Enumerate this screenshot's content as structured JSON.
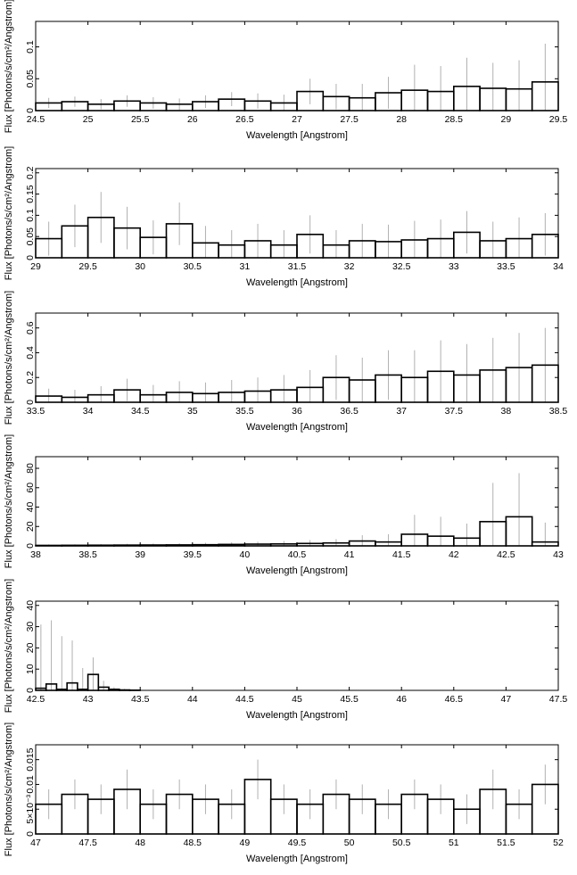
{
  "chart_data": [
    {
      "type": "histogram",
      "xlabel": "Wavelength [Angstrom]",
      "ylabel": "Flux [Photons/s/cm²/Angstrom]",
      "xlim": [
        24.5,
        29.5
      ],
      "ylim": [
        0,
        0.14
      ],
      "xticks": [
        "24.5",
        "25",
        "25.5",
        "26",
        "26.5",
        "27",
        "27.5",
        "28",
        "28.5",
        "29",
        "29.5"
      ],
      "xtick_values": [
        24.5,
        25,
        25.5,
        26,
        26.5,
        27,
        27.5,
        28,
        28.5,
        29,
        29.5
      ],
      "yticks": [
        "0",
        "0.05",
        "0.1"
      ],
      "ytick_values": [
        0,
        0.05,
        0.1
      ],
      "x": [
        24.5,
        24.75,
        25.0,
        25.25,
        25.5,
        25.75,
        26.0,
        26.25,
        26.5,
        26.75,
        27.0,
        27.25,
        27.5,
        27.75,
        28.0,
        28.25,
        28.5,
        28.75,
        29.0,
        29.25
      ],
      "values": [
        0.012,
        0.014,
        0.01,
        0.015,
        0.012,
        0.01,
        0.014,
        0.018,
        0.015,
        0.012,
        0.03,
        0.022,
        0.02,
        0.028,
        0.032,
        0.03,
        0.038,
        0.035,
        0.034,
        0.045
      ],
      "errors": [
        0.008,
        0.008,
        0.008,
        0.009,
        0.009,
        0.009,
        0.01,
        0.011,
        0.012,
        0.013,
        0.02,
        0.02,
        0.022,
        0.025,
        0.04,
        0.04,
        0.045,
        0.04,
        0.045,
        0.06
      ]
    },
    {
      "type": "histogram",
      "xlabel": "Wavelength [Angstrom]",
      "ylabel": "Flux [Photons/s/cm²/Angstrom]",
      "xlim": [
        29,
        34
      ],
      "ylim": [
        0,
        0.21
      ],
      "xticks": [
        "29",
        "29.5",
        "30",
        "30.5",
        "31",
        "31.5",
        "32",
        "32.5",
        "33",
        "33.5",
        "34"
      ],
      "xtick_values": [
        29,
        29.5,
        30,
        30.5,
        31,
        31.5,
        32,
        32.5,
        33,
        33.5,
        34
      ],
      "yticks": [
        "0",
        "0.05",
        "0.1",
        "0.15",
        "0.2"
      ],
      "ytick_values": [
        0,
        0.05,
        0.1,
        0.15,
        0.2
      ],
      "x": [
        29.0,
        29.25,
        29.5,
        29.75,
        30.0,
        30.25,
        30.5,
        30.75,
        31.0,
        31.25,
        31.5,
        31.75,
        32.0,
        32.25,
        32.5,
        32.75,
        33.0,
        33.25,
        33.5,
        33.75
      ],
      "values": [
        0.045,
        0.075,
        0.095,
        0.07,
        0.048,
        0.08,
        0.035,
        0.03,
        0.04,
        0.03,
        0.055,
        0.03,
        0.04,
        0.038,
        0.042,
        0.045,
        0.06,
        0.04,
        0.045,
        0.055
      ],
      "errors": [
        0.04,
        0.05,
        0.06,
        0.05,
        0.04,
        0.05,
        0.04,
        0.035,
        0.04,
        0.035,
        0.045,
        0.035,
        0.04,
        0.04,
        0.045,
        0.045,
        0.05,
        0.045,
        0.05,
        0.05
      ]
    },
    {
      "type": "histogram",
      "xlabel": "Wavelength [Angstrom]",
      "ylabel": "Flux [Photons/s/cm²/Angstrom]",
      "xlim": [
        33.5,
        38.5
      ],
      "ylim": [
        0,
        0.72
      ],
      "xticks": [
        "33.5",
        "34",
        "34.5",
        "35",
        "35.5",
        "36",
        "36.5",
        "37",
        "37.5",
        "38",
        "38.5"
      ],
      "xtick_values": [
        33.5,
        34,
        34.5,
        35,
        35.5,
        36,
        36.5,
        37,
        37.5,
        38,
        38.5
      ],
      "yticks": [
        "0",
        "0.2",
        "0.4",
        "0.6"
      ],
      "ytick_values": [
        0,
        0.2,
        0.4,
        0.6
      ],
      "x": [
        33.5,
        33.75,
        34.0,
        34.25,
        34.5,
        34.75,
        35.0,
        35.25,
        35.5,
        35.75,
        36.0,
        36.25,
        36.5,
        36.75,
        37.0,
        37.25,
        37.5,
        37.75,
        38.0,
        38.25
      ],
      "values": [
        0.05,
        0.04,
        0.06,
        0.1,
        0.06,
        0.08,
        0.07,
        0.08,
        0.09,
        0.1,
        0.12,
        0.2,
        0.18,
        0.22,
        0.2,
        0.25,
        0.22,
        0.26,
        0.28,
        0.3
      ],
      "errors": [
        0.06,
        0.06,
        0.07,
        0.09,
        0.08,
        0.09,
        0.09,
        0.1,
        0.11,
        0.12,
        0.14,
        0.18,
        0.18,
        0.2,
        0.22,
        0.25,
        0.25,
        0.26,
        0.28,
        0.3
      ]
    },
    {
      "type": "histogram",
      "xlabel": "Wavelength [Angstrom]",
      "ylabel": "Flux [Photons/s/cm²/Angstrom]",
      "xlim": [
        38,
        43
      ],
      "ylim": [
        0,
        92
      ],
      "xticks": [
        "38",
        "38.5",
        "39",
        "39.5",
        "40",
        "40.5",
        "41",
        "41.5",
        "42",
        "42.5",
        "43"
      ],
      "xtick_values": [
        38,
        38.5,
        39,
        39.5,
        40,
        40.5,
        41,
        41.5,
        42,
        42.5,
        43
      ],
      "yticks": [
        "0",
        "20",
        "40",
        "60",
        "80"
      ],
      "ytick_values": [
        0,
        20,
        40,
        60,
        80
      ],
      "x": [
        38.0,
        38.25,
        38.5,
        38.75,
        39.0,
        39.25,
        39.5,
        39.75,
        40.0,
        40.25,
        40.5,
        40.75,
        41.0,
        41.25,
        41.5,
        41.75,
        42.0,
        42.25,
        42.5,
        42.75
      ],
      "values": [
        0.5,
        0.6,
        0.7,
        0.8,
        0.9,
        1.0,
        1.2,
        1.5,
        1.8,
        2.0,
        2.5,
        3.0,
        5.0,
        4.0,
        12.0,
        10.0,
        8.0,
        25.0,
        30.0,
        4.0
      ],
      "errors": [
        1.0,
        1.0,
        1.2,
        1.3,
        1.5,
        1.7,
        2.0,
        2.2,
        2.5,
        3.0,
        3.5,
        4.0,
        6.0,
        8.0,
        20.0,
        20.0,
        15.0,
        40.0,
        45.0,
        20.0
      ]
    },
    {
      "type": "histogram",
      "xlabel": "Wavelength [Angstrom]",
      "ylabel": "Flux [Photons/s/cm²/Angstrom]",
      "xlim": [
        42.5,
        47.5
      ],
      "ylim": [
        0,
        42
      ],
      "xticks": [
        "42.5",
        "43",
        "43.5",
        "44",
        "44.5",
        "45",
        "45.5",
        "46",
        "46.5",
        "47",
        "47.5"
      ],
      "xtick_values": [
        42.5,
        43,
        43.5,
        44,
        44.5,
        45,
        45.5,
        46,
        46.5,
        47,
        47.5
      ],
      "yticks": [
        "0",
        "10",
        "20",
        "30",
        "40"
      ],
      "ytick_values": [
        0,
        10,
        20,
        30,
        40
      ],
      "x": [
        42.5,
        42.6,
        42.7,
        42.8,
        42.9,
        43.0,
        43.1,
        43.2,
        43.3,
        43.4
      ],
      "values": [
        1.0,
        3.0,
        0.5,
        3.5,
        0.5,
        7.5,
        1.5,
        0.5,
        0.2,
        0.1
      ],
      "errors": [
        30.0,
        30.0,
        25.0,
        20.0,
        10.0,
        8.0,
        3.0,
        1.0,
        0.5,
        0.2
      ]
    },
    {
      "type": "histogram",
      "xlabel": "Wavelength [Angstrom]",
      "ylabel": "Flux [Photons/s/cm²/Angstrom]",
      "xlim": [
        47,
        52
      ],
      "ylim": [
        0,
        0.018
      ],
      "xticks": [
        "47",
        "47.5",
        "48",
        "48.5",
        "49",
        "49.5",
        "50",
        "50.5",
        "51",
        "51.5",
        "52"
      ],
      "xtick_values": [
        47,
        47.5,
        48,
        48.5,
        49,
        49.5,
        50,
        50.5,
        51,
        51.5,
        52
      ],
      "yticks": [
        "0",
        "5×10⁻³",
        "0.01",
        "0.015"
      ],
      "ytick_values": [
        0,
        0.005,
        0.01,
        0.015
      ],
      "x": [
        47.0,
        47.25,
        47.5,
        47.75,
        48.0,
        48.25,
        48.5,
        48.75,
        49.0,
        49.25,
        49.5,
        49.75,
        50.0,
        50.25,
        50.5,
        50.75,
        51.0,
        51.25,
        51.5,
        51.75
      ],
      "values": [
        0.006,
        0.008,
        0.007,
        0.009,
        0.006,
        0.008,
        0.007,
        0.006,
        0.011,
        0.007,
        0.006,
        0.008,
        0.007,
        0.006,
        0.008,
        0.007,
        0.005,
        0.009,
        0.006,
        0.01
      ],
      "errors": [
        0.003,
        0.003,
        0.003,
        0.004,
        0.003,
        0.003,
        0.003,
        0.003,
        0.004,
        0.003,
        0.003,
        0.003,
        0.003,
        0.003,
        0.003,
        0.003,
        0.003,
        0.004,
        0.003,
        0.004
      ]
    }
  ]
}
